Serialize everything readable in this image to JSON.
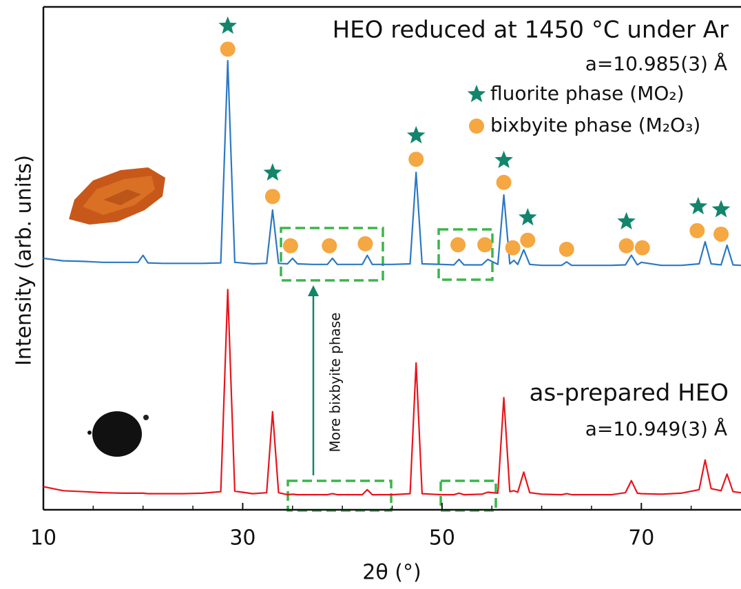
{
  "chart_data": {
    "type": "line",
    "x_label": "2θ (°)",
    "y_label": "Intensity (arb. units)",
    "xlim": [
      10,
      80
    ],
    "xticks": [
      10,
      30,
      50,
      70
    ],
    "xminorticks": [
      15,
      20,
      25,
      35,
      40,
      45,
      55,
      60,
      65,
      75
    ],
    "ylim": [
      0,
      100
    ],
    "x": [
      10,
      12,
      14,
      16,
      18,
      19.5,
      20,
      20.5,
      22,
      24,
      26,
      27.8,
      28.5,
      29.2,
      31,
      32.4,
      33,
      33.6,
      34.5,
      35,
      35.5,
      37,
      38.5,
      39,
      39.5,
      41,
      42,
      42.5,
      43,
      45,
      46.8,
      47.4,
      48,
      50,
      51.2,
      51.7,
      52.2,
      54,
      54.6,
      55.6,
      56.2,
      56.8,
      57.2,
      57.6,
      58.2,
      58.8,
      60,
      62,
      62.5,
      63,
      65,
      67,
      68.4,
      69,
      69.6,
      70,
      72,
      74,
      75.8,
      76.4,
      77,
      78,
      78.6,
      79.2,
      80
    ],
    "series": [
      {
        "name": "HEO reduced at 1450 °C under Ar",
        "lattice": "a=10.985(3) Å",
        "color": "#2b78c2",
        "values": [
          50.0,
          49.5,
          49.4,
          49.2,
          49.2,
          49.2,
          50.6,
          49.1,
          49.0,
          49.0,
          49.0,
          49.1,
          89.3,
          49.2,
          48.9,
          49.0,
          59.6,
          49.0,
          48.9,
          50.0,
          48.9,
          48.8,
          48.8,
          50.0,
          48.8,
          48.8,
          48.8,
          50.6,
          48.8,
          48.8,
          48.9,
          67.1,
          48.9,
          48.8,
          48.7,
          49.8,
          48.7,
          48.7,
          49.8,
          48.8,
          62.6,
          48.9,
          49.6,
          48.8,
          51.7,
          48.8,
          48.6,
          48.6,
          49.3,
          48.6,
          48.6,
          48.6,
          48.7,
          50.6,
          48.7,
          49.2,
          48.6,
          48.6,
          48.9,
          53.3,
          48.9,
          48.7,
          52.6,
          48.7,
          48.6
        ]
      },
      {
        "name": "as-prepared HEO",
        "lattice": "a=10.949(3) Å",
        "color": "#e8141c",
        "values": [
          4.6,
          3.8,
          3.6,
          3.4,
          3.3,
          3.3,
          3.3,
          3.2,
          3.2,
          3.2,
          3.3,
          3.6,
          43.8,
          3.7,
          3.2,
          3.4,
          19.5,
          3.4,
          3.0,
          3.1,
          3.0,
          3.0,
          3.0,
          3.2,
          3.0,
          3.0,
          3.0,
          4.0,
          3.0,
          3.0,
          3.2,
          29.2,
          3.2,
          3.0,
          3.0,
          3.3,
          3.0,
          3.1,
          3.5,
          3.3,
          22.3,
          3.6,
          3.8,
          3.5,
          7.5,
          3.4,
          3.1,
          3.0,
          3.2,
          3.0,
          3.0,
          3.0,
          3.4,
          5.8,
          3.3,
          3.2,
          3.1,
          3.3,
          4.0,
          9.9,
          4.2,
          3.8,
          7.1,
          3.6,
          3.4
        ]
      },
      {
        "name": "fluorite phase (MO₂)",
        "marker": "star",
        "color": "#12856a",
        "x": [
          28.5,
          33,
          47.4,
          56.2,
          58.6,
          68.5,
          75.7,
          78.0
        ],
        "values": [
          96.2,
          67.0,
          74.4,
          69.5,
          58.1,
          57.3,
          60.3,
          59.7
        ]
      },
      {
        "name": "bixbyite phase (M₂O₃)",
        "marker": "circle",
        "color": "#f5a742",
        "x": [
          28.5,
          33,
          47.4,
          56.2,
          34.8,
          38.7,
          42.3,
          51.6,
          54.3,
          57.1,
          58.6,
          62.5,
          68.5,
          70.1,
          75.6,
          78.0
        ],
        "values": [
          91.6,
          62.3,
          69.7,
          65.1,
          52.5,
          52.5,
          52.9,
          52.7,
          52.7,
          52.1,
          53.6,
          51.8,
          52.5,
          52.1,
          55.5,
          54.8
        ]
      }
    ],
    "annotation": "More bixbyite phase"
  }
}
